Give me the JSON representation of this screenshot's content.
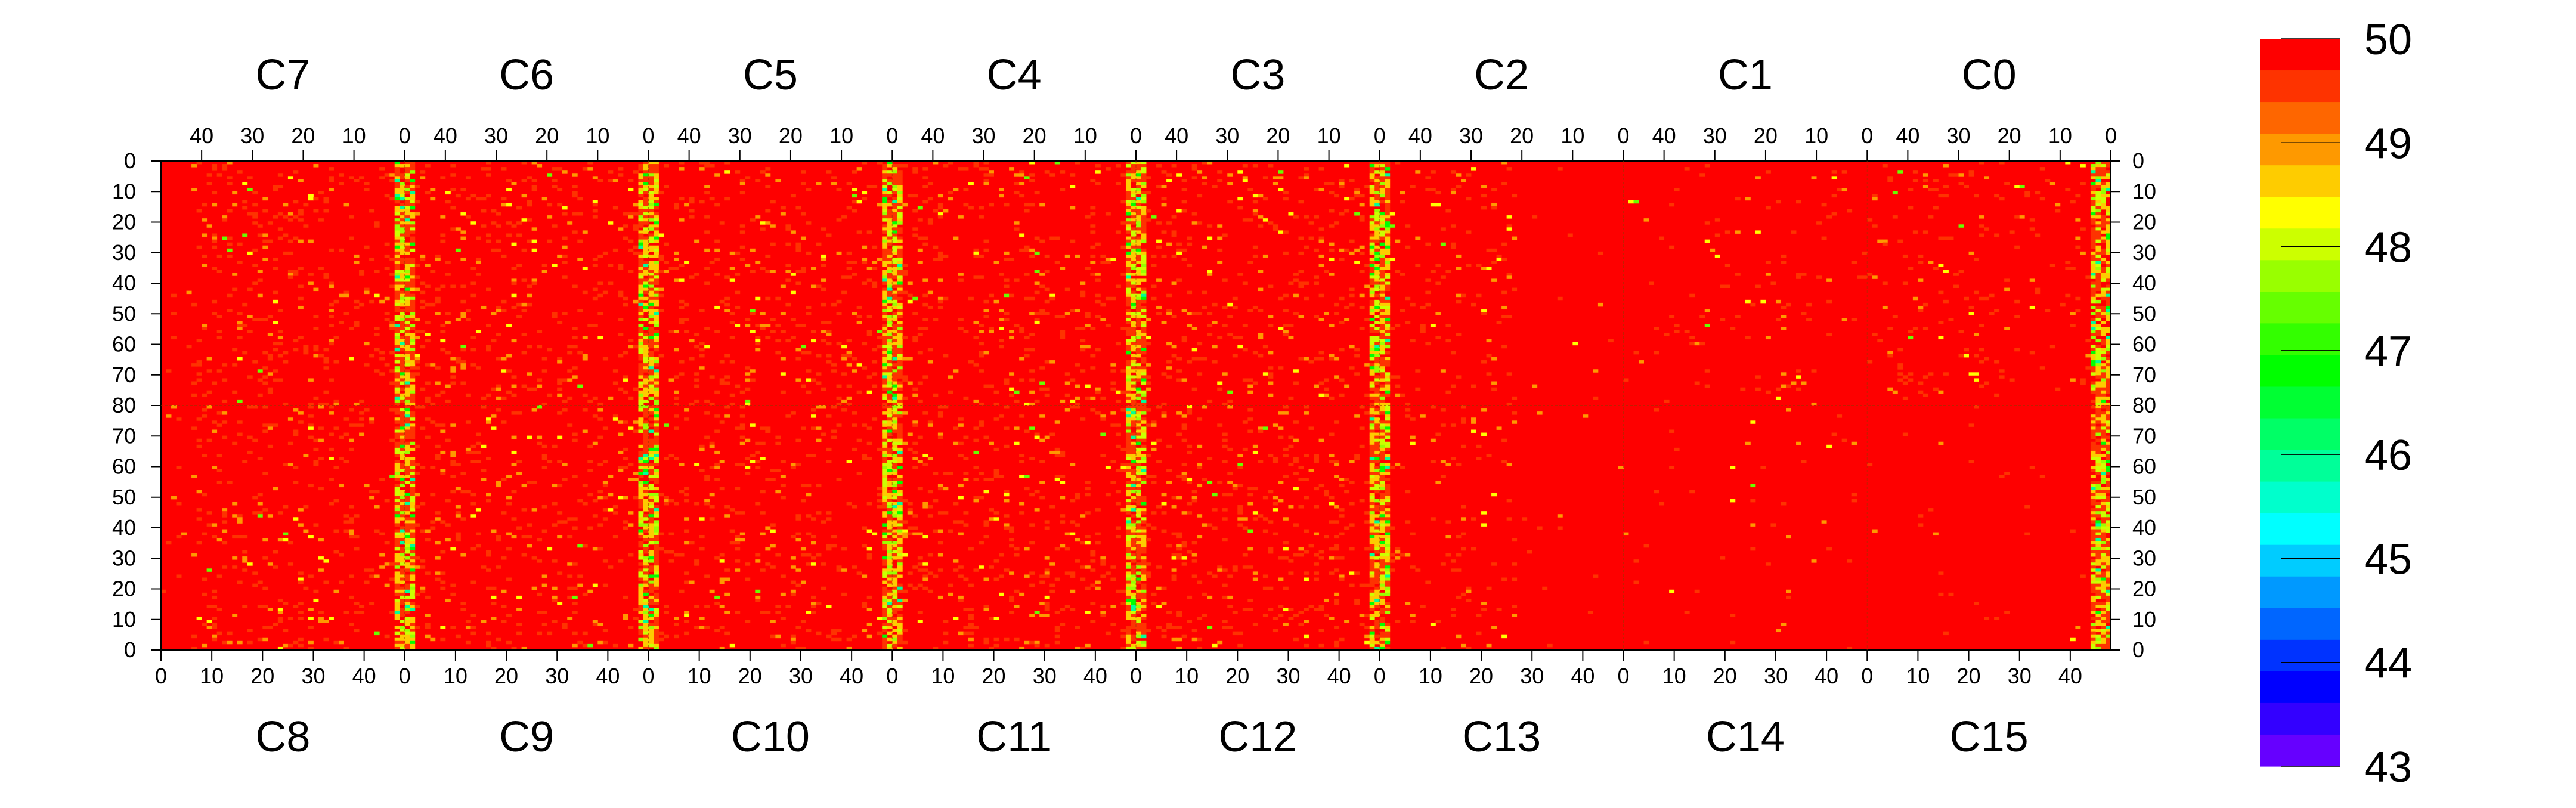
{
  "chart_data": {
    "type": "heatmap",
    "title": "",
    "xlabel": "",
    "ylabel": "",
    "description_units": "value per channel cell",
    "z_range": [
      43,
      50
    ],
    "colorbar": {
      "tick_labels": [
        "50",
        "49",
        "48",
        "47",
        "46",
        "45",
        "44",
        "43"
      ],
      "tick_values": [
        50,
        49,
        48,
        47,
        46,
        45,
        44,
        43
      ],
      "colors_top_to_bottom": [
        "#fe0000",
        "#fe3300",
        "#fe6600",
        "#fe9900",
        "#fecc00",
        "#ffff00",
        "#ccff00",
        "#99ff00",
        "#66ff00",
        "#33ff00",
        "#00ff00",
        "#00ff33",
        "#00ff66",
        "#00ff99",
        "#00ffcc",
        "#00ffff",
        "#00ccff",
        "#0099ff",
        "#0066ff",
        "#0033ff",
        "#0000ff",
        "#3300ff",
        "#6600ff"
      ]
    },
    "top_chips": {
      "labels": [
        "C7",
        "C6",
        "C5",
        "C4",
        "C3",
        "C2",
        "C1",
        "C0"
      ],
      "tick_labels": [
        "40",
        "30",
        "20",
        "10",
        "0"
      ],
      "tick_values": [
        40,
        30,
        20,
        10,
        0
      ],
      "x_order": "descending",
      "x_range": [
        0,
        48
      ]
    },
    "bottom_chips": {
      "labels": [
        "C8",
        "C9",
        "C10",
        "C11",
        "C12",
        "C13",
        "C14",
        "C15"
      ],
      "tick_labels": [
        "0",
        "10",
        "20",
        "30",
        "40"
      ],
      "tick_values": [
        0,
        10,
        20,
        30,
        40
      ],
      "x_order": "ascending",
      "x_range": [
        0,
        48
      ]
    },
    "y_left_ticks": [
      "0",
      "10",
      "20",
      "30",
      "40",
      "50",
      "60",
      "70",
      "80",
      "70",
      "60",
      "50",
      "40",
      "30",
      "20",
      "10",
      "0"
    ],
    "y_right_ticks": [
      "0",
      "10",
      "20",
      "30",
      "40",
      "50",
      "60",
      "70",
      "80",
      "70",
      "60",
      "50",
      "40",
      "30",
      "20",
      "10",
      "0"
    ],
    "y_range_per_half": [
      0,
      80
    ],
    "dominant_value": 50,
    "hot_columns": [
      {
        "region": "C7/C6 boundary (C8/C9)",
        "min_value_approx": 46
      },
      {
        "region": "C6/C5 boundary (C9/C10)",
        "min_value_approx": 47
      },
      {
        "region": "C5/C4 boundary (C10/C11)",
        "min_value_approx": 46
      },
      {
        "region": "C4/C3 boundary (C11/C12)",
        "min_value_approx": 47
      },
      {
        "region": "C3/C2 boundary (C12/C13)",
        "min_value_approx": 47
      },
      {
        "region": "C0 right edge",
        "min_value_approx": 47
      }
    ],
    "grid": false,
    "legend_position": "right"
  }
}
